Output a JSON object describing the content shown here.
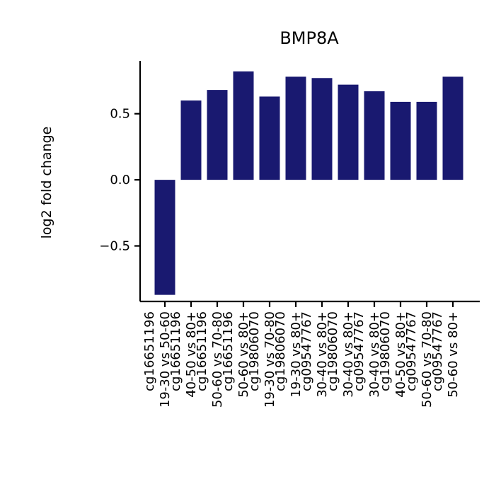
{
  "chart_data": {
    "type": "bar",
    "title": "BMP8A",
    "xlabel": "",
    "ylabel": "log2 fold change",
    "ylim": [
      -0.92,
      0.9
    ],
    "yticks": [
      {
        "value": 0.5,
        "label": "0.5"
      },
      {
        "value": 0.0,
        "label": "0.0"
      },
      {
        "value": -0.5,
        "label": "−0.5"
      }
    ],
    "bar_color": "#191970",
    "grid": false,
    "categories": [
      "cg16651196\n19-30 vs 50-60",
      "cg16651196\n40-50 vs 80+",
      "cg16651196\n50-60 vs 70-80",
      "cg16651196\n50-60 vs 80+",
      "cg19806070\n19-30 vs 70-80",
      "cg19806070\n19-30 vs 80+",
      "cg09547767\n30-40 vs 80+",
      "cg19806070\n30-40 vs 80+",
      "cg09547767\n30-40 vs 80+",
      "cg19806070\n40-50 vs 80+",
      "cg09547767\n50-60 vs 70-80",
      "cg09547767\n50-60 vs 80+"
    ],
    "values": [
      -0.87,
      0.6,
      0.68,
      0.82,
      0.63,
      0.78,
      0.77,
      0.72,
      0.67,
      0.59,
      0.59,
      0.78
    ]
  }
}
